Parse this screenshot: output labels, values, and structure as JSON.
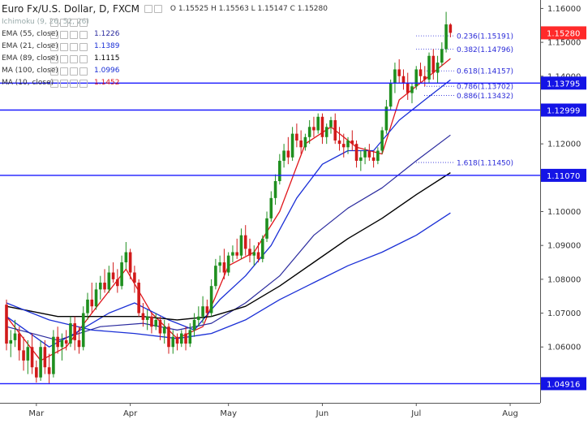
{
  "header": {
    "title": "Euro Fx/U.S. Dollar, D, FXCM",
    "ohlc": "O 1.15525 H 1.15563 L 1.15147 C 1.15280"
  },
  "indicators": [
    {
      "label": "Ichimoku (9, 26, 52, 26)",
      "value": "",
      "color": "#9aa0a6"
    },
    {
      "label": "EMA (55, close)",
      "value": "1.1226",
      "color": "#2a2a9e"
    },
    {
      "label": "EMA (21, close)",
      "value": "1.1389",
      "color": "#1a2fd6"
    },
    {
      "label": "EMA (89, close)",
      "value": "1.1115",
      "color": "#000000"
    },
    {
      "label": "MA (100, close)",
      "value": "1.0996",
      "color": "#1a2fd6"
    },
    {
      "label": "MA (10, close)",
      "value": "1.1452",
      "color": "#e0161c"
    }
  ],
  "chart_data": {
    "type": "candlestick",
    "ylim": [
      1.0435,
      1.1625
    ],
    "y_ticks": [
      "1.16000",
      "1.15000",
      "1.14000",
      "1.13000",
      "1.12000",
      "1.11000",
      "1.10000",
      "1.09000",
      "1.08000",
      "1.07000",
      "1.06000",
      "1.05000"
    ],
    "x_labels": [
      "Mar",
      "Apr",
      "May",
      "Jun",
      "Jul",
      "Aug"
    ],
    "current_price": {
      "label": "1.15280",
      "value": 1.1528,
      "color": "#ff2a2a"
    },
    "horizontal_levels": [
      {
        "label": "1.13795",
        "value": 1.13795
      },
      {
        "label": "1.12999",
        "value": 1.12999
      },
      {
        "label": "1.11070",
        "value": 1.1107
      },
      {
        "label": "1.04916",
        "value": 1.04916
      }
    ],
    "fib_levels": [
      {
        "label": "0.236(1.15191)",
        "value": 1.15191
      },
      {
        "label": "0.382(1.14796)",
        "value": 1.14796
      },
      {
        "label": "0.618(1.14157)",
        "value": 1.14157
      },
      {
        "label": "0.786(1.13702)",
        "value": 1.13702
      },
      {
        "label": "0.886(1.13432)",
        "value": 1.13432
      },
      {
        "label": "1.618(1.11450)",
        "value": 1.1145
      }
    ],
    "candles": [
      [
        1.0725,
        1.074,
        1.059,
        1.061
      ],
      [
        1.061,
        1.065,
        1.057,
        1.062
      ],
      [
        1.062,
        1.068,
        1.06,
        1.064
      ],
      [
        1.064,
        1.066,
        1.056,
        1.059
      ],
      [
        1.059,
        1.063,
        1.053,
        1.056
      ],
      [
        1.056,
        1.062,
        1.052,
        1.06
      ],
      [
        1.06,
        1.064,
        1.052,
        1.054
      ],
      [
        1.054,
        1.056,
        1.0495,
        1.051
      ],
      [
        1.051,
        1.062,
        1.05,
        1.06
      ],
      [
        1.06,
        1.062,
        1.052,
        1.054
      ],
      [
        1.054,
        1.058,
        1.049,
        1.052
      ],
      [
        1.052,
        1.065,
        1.051,
        1.063
      ],
      [
        1.063,
        1.066,
        1.058,
        1.06
      ],
      [
        1.06,
        1.064,
        1.056,
        1.062
      ],
      [
        1.062,
        1.065,
        1.059,
        1.061
      ],
      [
        1.061,
        1.069,
        1.06,
        1.067
      ],
      [
        1.067,
        1.069,
        1.059,
        1.062
      ],
      [
        1.062,
        1.066,
        1.058,
        1.06
      ],
      [
        1.06,
        1.072,
        1.059,
        1.07
      ],
      [
        1.07,
        1.076,
        1.068,
        1.074
      ],
      [
        1.074,
        1.079,
        1.07,
        1.072
      ],
      [
        1.072,
        1.079,
        1.071,
        1.077
      ],
      [
        1.077,
        1.081,
        1.074,
        1.079
      ],
      [
        1.079,
        1.083,
        1.076,
        1.077
      ],
      [
        1.077,
        1.084,
        1.076,
        1.082
      ],
      [
        1.082,
        1.085,
        1.079,
        1.08
      ],
      [
        1.08,
        1.083,
        1.076,
        1.078
      ],
      [
        1.078,
        1.087,
        1.077,
        1.085
      ],
      [
        1.085,
        1.091,
        1.083,
        1.088
      ],
      [
        1.088,
        1.089,
        1.08,
        1.082
      ],
      [
        1.082,
        1.084,
        1.076,
        1.079
      ],
      [
        1.079,
        1.08,
        1.069,
        1.07
      ],
      [
        1.07,
        1.073,
        1.066,
        1.068
      ],
      [
        1.068,
        1.071,
        1.065,
        1.069
      ],
      [
        1.069,
        1.07,
        1.064,
        1.066
      ],
      [
        1.066,
        1.07,
        1.065,
        1.068
      ],
      [
        1.068,
        1.069,
        1.062,
        1.064
      ],
      [
        1.064,
        1.068,
        1.061,
        1.066
      ],
      [
        1.066,
        1.067,
        1.058,
        1.06
      ],
      [
        1.06,
        1.065,
        1.058,
        1.063
      ],
      [
        1.063,
        1.064,
        1.059,
        1.061
      ],
      [
        1.061,
        1.065,
        1.06,
        1.064
      ],
      [
        1.064,
        1.066,
        1.059,
        1.061
      ],
      [
        1.061,
        1.067,
        1.06,
        1.065
      ],
      [
        1.065,
        1.07,
        1.063,
        1.068
      ],
      [
        1.068,
        1.072,
        1.066,
        1.069
      ],
      [
        1.069,
        1.075,
        1.067,
        1.072
      ],
      [
        1.072,
        1.074,
        1.069,
        1.07
      ],
      [
        1.07,
        1.08,
        1.069,
        1.078
      ],
      [
        1.078,
        1.086,
        1.077,
        1.084
      ],
      [
        1.084,
        1.087,
        1.082,
        1.085
      ],
      [
        1.085,
        1.089,
        1.08,
        1.082
      ],
      [
        1.082,
        1.088,
        1.081,
        1.087
      ],
      [
        1.087,
        1.09,
        1.085,
        1.088
      ],
      [
        1.088,
        1.092,
        1.086,
        1.087
      ],
      [
        1.087,
        1.095,
        1.086,
        1.093
      ],
      [
        1.093,
        1.096,
        1.087,
        1.089
      ],
      [
        1.089,
        1.092,
        1.085,
        1.087
      ],
      [
        1.087,
        1.09,
        1.084,
        1.088
      ],
      [
        1.088,
        1.091,
        1.085,
        1.086
      ],
      [
        1.086,
        1.093,
        1.085,
        1.092
      ],
      [
        1.092,
        1.1,
        1.091,
        1.098
      ],
      [
        1.098,
        1.106,
        1.097,
        1.104
      ],
      [
        1.104,
        1.111,
        1.102,
        1.109
      ],
      [
        1.109,
        1.117,
        1.108,
        1.115
      ],
      [
        1.115,
        1.12,
        1.113,
        1.118
      ],
      [
        1.118,
        1.122,
        1.114,
        1.116
      ],
      [
        1.116,
        1.125,
        1.115,
        1.123
      ],
      [
        1.123,
        1.126,
        1.119,
        1.121
      ],
      [
        1.121,
        1.124,
        1.117,
        1.119
      ],
      [
        1.119,
        1.123,
        1.118,
        1.122
      ],
      [
        1.122,
        1.127,
        1.12,
        1.125
      ],
      [
        1.125,
        1.128,
        1.122,
        1.124
      ],
      [
        1.124,
        1.129,
        1.123,
        1.128
      ],
      [
        1.128,
        1.129,
        1.12,
        1.122
      ],
      [
        1.122,
        1.126,
        1.12,
        1.125
      ],
      [
        1.125,
        1.128,
        1.123,
        1.127
      ],
      [
        1.127,
        1.129,
        1.12,
        1.121
      ],
      [
        1.121,
        1.125,
        1.118,
        1.12
      ],
      [
        1.12,
        1.123,
        1.116,
        1.119
      ],
      [
        1.119,
        1.122,
        1.117,
        1.121
      ],
      [
        1.121,
        1.124,
        1.118,
        1.12
      ],
      [
        1.12,
        1.121,
        1.113,
        1.115
      ],
      [
        1.115,
        1.118,
        1.112,
        1.116
      ],
      [
        1.116,
        1.119,
        1.114,
        1.118
      ],
      [
        1.118,
        1.12,
        1.115,
        1.116
      ],
      [
        1.116,
        1.118,
        1.113,
        1.115
      ],
      [
        1.115,
        1.119,
        1.114,
        1.118
      ],
      [
        1.118,
        1.125,
        1.117,
        1.124
      ],
      [
        1.124,
        1.133,
        1.123,
        1.131
      ],
      [
        1.131,
        1.139,
        1.13,
        1.138
      ],
      [
        1.138,
        1.144,
        1.135,
        1.142
      ],
      [
        1.142,
        1.145,
        1.138,
        1.14
      ],
      [
        1.14,
        1.142,
        1.136,
        1.138
      ],
      [
        1.138,
        1.141,
        1.133,
        1.135
      ],
      [
        1.135,
        1.138,
        1.132,
        1.137
      ],
      [
        1.137,
        1.143,
        1.136,
        1.142
      ],
      [
        1.142,
        1.144,
        1.138,
        1.14
      ],
      [
        1.14,
        1.143,
        1.137,
        1.139
      ],
      [
        1.139,
        1.147,
        1.138,
        1.146
      ],
      [
        1.146,
        1.148,
        1.139,
        1.141
      ],
      [
        1.141,
        1.146,
        1.138,
        1.144
      ],
      [
        1.144,
        1.15,
        1.143,
        1.148
      ],
      [
        1.148,
        1.159,
        1.147,
        1.1553
      ],
      [
        1.15525,
        1.15563,
        1.15147,
        1.1528
      ]
    ],
    "overlays": [
      {
        "name": "MA (10, close)",
        "color": "#e0161c",
        "width": 1.3,
        "points": [
          [
            0,
            1.069
          ],
          [
            8,
            1.056
          ],
          [
            14,
            1.06
          ],
          [
            20,
            1.07
          ],
          [
            28,
            1.083
          ],
          [
            34,
            1.07
          ],
          [
            40,
            1.0625
          ],
          [
            46,
            1.066
          ],
          [
            52,
            1.084
          ],
          [
            58,
            1.088
          ],
          [
            64,
            1.1
          ],
          [
            70,
            1.12
          ],
          [
            76,
            1.125
          ],
          [
            82,
            1.119
          ],
          [
            88,
            1.117
          ],
          [
            92,
            1.133
          ],
          [
            98,
            1.139
          ],
          [
            104,
            1.1452
          ]
        ]
      },
      {
        "name": "EMA (21, close)",
        "color": "#1a2fd6",
        "width": 1.3,
        "points": [
          [
            0,
            1.069
          ],
          [
            10,
            1.06
          ],
          [
            16,
            1.064
          ],
          [
            24,
            1.07
          ],
          [
            30,
            1.073
          ],
          [
            38,
            1.068
          ],
          [
            44,
            1.065
          ],
          [
            50,
            1.074
          ],
          [
            56,
            1.081
          ],
          [
            62,
            1.09
          ],
          [
            68,
            1.104
          ],
          [
            74,
            1.114
          ],
          [
            80,
            1.118
          ],
          [
            86,
            1.118
          ],
          [
            92,
            1.127
          ],
          [
            98,
            1.133
          ],
          [
            104,
            1.1389
          ]
        ]
      },
      {
        "name": "EMA (55, close)",
        "color": "#2a2a9e",
        "width": 1.2,
        "points": [
          [
            0,
            1.066
          ],
          [
            12,
            1.062
          ],
          [
            22,
            1.066
          ],
          [
            32,
            1.067
          ],
          [
            40,
            1.065
          ],
          [
            48,
            1.067
          ],
          [
            56,
            1.073
          ],
          [
            64,
            1.081
          ],
          [
            72,
            1.093
          ],
          [
            80,
            1.101
          ],
          [
            88,
            1.107
          ],
          [
            96,
            1.115
          ],
          [
            104,
            1.1226
          ]
        ]
      },
      {
        "name": "EMA (89, close)",
        "color": "#000000",
        "width": 1.4,
        "points": [
          [
            0,
            1.072
          ],
          [
            12,
            1.069
          ],
          [
            22,
            1.069
          ],
          [
            32,
            1.069
          ],
          [
            40,
            1.068
          ],
          [
            48,
            1.069
          ],
          [
            56,
            1.072
          ],
          [
            64,
            1.078
          ],
          [
            72,
            1.085
          ],
          [
            80,
            1.092
          ],
          [
            88,
            1.098
          ],
          [
            96,
            1.105
          ],
          [
            104,
            1.1115
          ]
        ]
      },
      {
        "name": "MA (100, close)",
        "color": "#1a2fd6",
        "width": 1.3,
        "points": [
          [
            0,
            1.073
          ],
          [
            10,
            1.068
          ],
          [
            20,
            1.065
          ],
          [
            30,
            1.064
          ],
          [
            40,
            1.0625
          ],
          [
            48,
            1.064
          ],
          [
            56,
            1.068
          ],
          [
            64,
            1.074
          ],
          [
            72,
            1.079
          ],
          [
            80,
            1.084
          ],
          [
            88,
            1.088
          ],
          [
            96,
            1.093
          ],
          [
            104,
            1.0996
          ]
        ]
      }
    ]
  }
}
